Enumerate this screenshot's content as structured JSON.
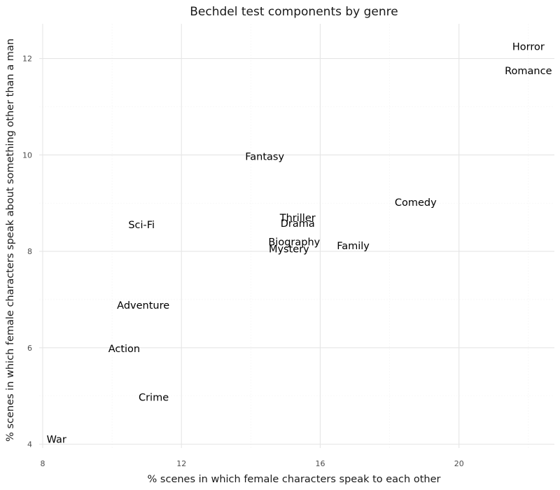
{
  "chart_data": {
    "type": "scatter",
    "title": "Bechdel test components by genre",
    "xlabel": "% scenes in which female characters speak to each other",
    "ylabel": "% scenes in which female characters speak about something other than a man",
    "xlim": [
      7.9,
      22.75
    ],
    "ylim": [
      3.92,
      12.72
    ],
    "xticks": [
      8,
      12,
      16,
      20
    ],
    "yticks": [
      4,
      6,
      8,
      10,
      12
    ],
    "xticks_minor": [
      10,
      14,
      18,
      22
    ],
    "yticks_minor": [
      5,
      7,
      9,
      11
    ],
    "grid": true,
    "marker": "text-label",
    "points": [
      {
        "label": "Horror",
        "x": 22.0,
        "y": 12.25
      },
      {
        "label": "Romance",
        "x": 22.0,
        "y": 11.75
      },
      {
        "label": "Fantasy",
        "x": 14.4,
        "y": 9.97
      },
      {
        "label": "Comedy",
        "x": 18.75,
        "y": 9.02
      },
      {
        "label": "Thriller",
        "x": 15.35,
        "y": 8.7
      },
      {
        "label": "Drama",
        "x": 15.35,
        "y": 8.58
      },
      {
        "label": "Sci-Fi",
        "x": 10.85,
        "y": 8.55
      },
      {
        "label": "Biography",
        "x": 15.25,
        "y": 8.2
      },
      {
        "label": "Family",
        "x": 16.95,
        "y": 8.12
      },
      {
        "label": "Mystery",
        "x": 15.1,
        "y": 8.05
      },
      {
        "label": "Adventure",
        "x": 10.9,
        "y": 6.88
      },
      {
        "label": "Action",
        "x": 10.35,
        "y": 5.98
      },
      {
        "label": "Crime",
        "x": 11.2,
        "y": 4.97
      },
      {
        "label": "War",
        "x": 8.4,
        "y": 4.1
      }
    ]
  }
}
